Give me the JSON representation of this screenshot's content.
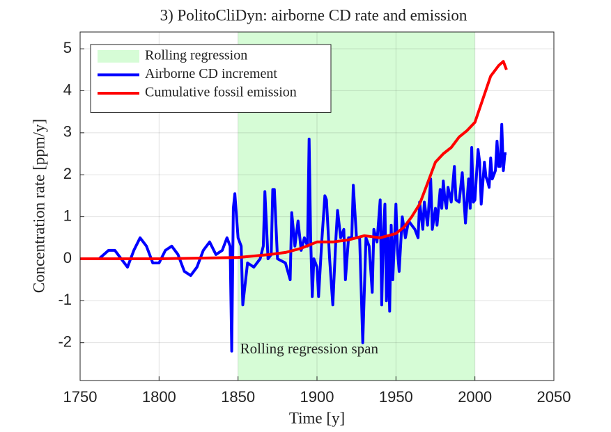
{
  "chart_data": {
    "type": "line",
    "title": "3) PolitoCliDyn: airborne CD rate and emission",
    "x_label": "Time [y]",
    "y_label": "Concentration rate [ppm/y]",
    "annotation": "Rolling regression span",
    "regions": [
      {
        "name": "Rolling regression",
        "color": "#d6fcd6",
        "x": [
          1850,
          2000
        ]
      }
    ],
    "series": [
      {
        "name": "Airborne CD increment",
        "color": "#0000ff",
        "x": [
          1750,
          1762,
          1768,
          1772,
          1776,
          1780,
          1784,
          1788,
          1792,
          1796,
          1800,
          1804,
          1808,
          1812,
          1816,
          1820,
          1824,
          1828,
          1832,
          1836,
          1840,
          1843,
          1845,
          1846,
          1847,
          1848,
          1850,
          1852,
          1853,
          1856,
          1860,
          1864,
          1866,
          1867,
          1869,
          1871,
          1872,
          1873,
          1875,
          1880,
          1883,
          1884,
          1886,
          1888,
          1890,
          1892,
          1894,
          1895,
          1896,
          1897,
          1898,
          1900,
          1901,
          1903,
          1905,
          1906,
          1908,
          1910,
          1912,
          1913,
          1915,
          1917,
          1918,
          1920,
          1922,
          1923,
          1925,
          1927,
          1929,
          1931,
          1933,
          1935,
          1936,
          1938,
          1940,
          1941,
          1942,
          1943,
          1944,
          1945,
          1946,
          1947,
          1948,
          1950,
          1951,
          1952,
          1954,
          1956,
          1958,
          1960,
          1962,
          1964,
          1965,
          1967,
          1968,
          1970,
          1972,
          1973,
          1975,
          1976,
          1978,
          1979,
          1980,
          1981,
          1982,
          1983,
          1985,
          1987,
          1988,
          1990,
          1992,
          1994,
          1996,
          1997,
          1998,
          1999,
          2000,
          2002,
          2003,
          2004,
          2006,
          2007,
          2008,
          2009,
          2010,
          2011,
          2012,
          2013,
          2014,
          2015,
          2016,
          2017,
          2018,
          2019,
          2020
        ],
        "values": [
          0,
          0,
          0.2,
          0.2,
          0,
          -0.2,
          0.2,
          0.5,
          0.3,
          -0.1,
          -0.1,
          0.2,
          0.3,
          0.1,
          -0.3,
          -0.4,
          -0.2,
          0.2,
          0.4,
          0.1,
          0.2,
          0.5,
          0.3,
          -2.2,
          1.2,
          1.55,
          0.5,
          0.3,
          -1.1,
          -0.1,
          -0.2,
          0,
          0.3,
          1.6,
          0,
          0.1,
          1.65,
          1.65,
          0,
          -0.1,
          -0.5,
          1.1,
          0.3,
          0.9,
          0.2,
          0.5,
          0.3,
          2.85,
          0.5,
          -0.9,
          0,
          -0.2,
          -0.9,
          0.4,
          1.5,
          1.4,
          0,
          -1.1,
          0.5,
          1.15,
          0.5,
          0.7,
          -0.5,
          0.5,
          0.5,
          1.75,
          0.5,
          0.5,
          -2.0,
          0.5,
          0.3,
          -0.8,
          0.7,
          0.4,
          1.4,
          -1.1,
          0.6,
          1.3,
          -1.0,
          0.5,
          -1.25,
          0.8,
          -0.5,
          1.3,
          0.2,
          -0.3,
          1.0,
          0.5,
          0.9,
          0.8,
          0.7,
          0.5,
          1.35,
          0.7,
          1.35,
          0.8,
          1.9,
          0.7,
          1.2,
          0.8,
          1.65,
          1.2,
          1.85,
          1.4,
          1.2,
          1.7,
          1.35,
          2.2,
          1.4,
          1.35,
          2.05,
          0.85,
          1.9,
          1.2,
          2.65,
          1.35,
          1.4,
          2.6,
          2.3,
          1.3,
          2.3,
          1.95,
          1.85,
          1.7,
          2.4,
          1.9,
          2.0,
          2.1,
          2.8,
          2.2,
          2.2,
          3.2,
          2.1,
          2.5,
          2.5
        ]
      },
      {
        "name": "Cumulative fossil emission",
        "color": "#ff0000",
        "x": [
          1750,
          1800,
          1850,
          1870,
          1880,
          1890,
          1900,
          1910,
          1920,
          1930,
          1940,
          1945,
          1950,
          1955,
          1960,
          1965,
          1970,
          1975,
          1980,
          1985,
          1990,
          1995,
          2000,
          2005,
          2010,
          2015,
          2018,
          2020
        ],
        "values": [
          0,
          0,
          0.03,
          0.1,
          0.15,
          0.25,
          0.4,
          0.4,
          0.45,
          0.55,
          0.5,
          0.55,
          0.6,
          0.75,
          1.0,
          1.3,
          1.8,
          2.3,
          2.5,
          2.65,
          2.9,
          3.05,
          3.25,
          3.8,
          4.35,
          4.6,
          4.7,
          4.5
        ]
      }
    ],
    "xlim": [
      1750,
      2050
    ],
    "xticks": [
      1750,
      1800,
      1850,
      1900,
      1950,
      2000,
      2050
    ],
    "ylim": [
      -2.9,
      5.4
    ],
    "yticks": [
      -2,
      -1,
      0,
      1,
      2,
      3,
      4,
      5
    ],
    "grid": true,
    "legend": "upper left"
  }
}
